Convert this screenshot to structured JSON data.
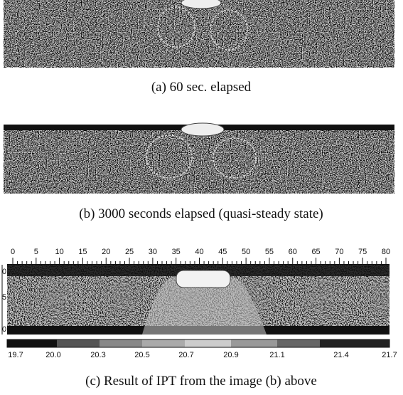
{
  "panel_a": {
    "caption": "(a) 60 sec. elapsed"
  },
  "panel_b": {
    "caption": "(b) 3000 seconds elapsed (quasi-steady state)"
  },
  "panel_c": {
    "caption": "(c) Result of IPT from the image (b) above",
    "top_scale": [
      0,
      5,
      10,
      15,
      20,
      25,
      30,
      35,
      40,
      45,
      50,
      55,
      60,
      65,
      70,
      75,
      80
    ],
    "left_scale": [
      0,
      5,
      0
    ],
    "colorbar_labels": [
      "19.7",
      "20.0",
      "20.3",
      "20.5",
      "20.7",
      "20.9",
      "21.1",
      "21.4",
      "21.7"
    ]
  }
}
